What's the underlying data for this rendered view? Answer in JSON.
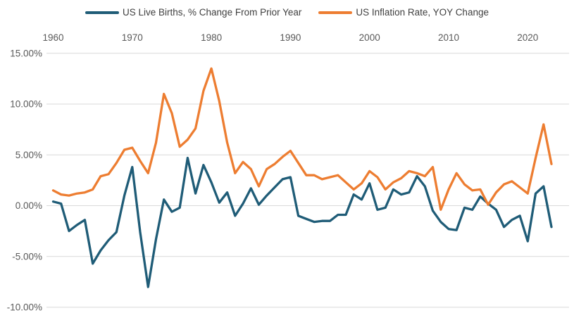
{
  "legend": [
    {
      "label": "US Live Births, % Change From Prior Year",
      "color": "#1F5C77"
    },
    {
      "label": "US Inflation Rate, YOY Change",
      "color": "#ED7D31"
    }
  ],
  "chart_data": {
    "type": "line",
    "title": "",
    "xlabel": "",
    "ylabel": "",
    "x": [
      1960,
      1961,
      1962,
      1963,
      1964,
      1965,
      1966,
      1967,
      1968,
      1969,
      1970,
      1971,
      1972,
      1973,
      1974,
      1975,
      1976,
      1977,
      1978,
      1979,
      1980,
      1981,
      1982,
      1983,
      1984,
      1985,
      1986,
      1987,
      1988,
      1989,
      1990,
      1991,
      1992,
      1993,
      1994,
      1995,
      1996,
      1997,
      1998,
      1999,
      2000,
      2001,
      2002,
      2003,
      2004,
      2005,
      2006,
      2007,
      2008,
      2009,
      2010,
      2011,
      2012,
      2013,
      2014,
      2015,
      2016,
      2017,
      2018,
      2019,
      2020,
      2021,
      2022,
      2023
    ],
    "series": [
      {
        "name": "US Live Births, % Change From Prior Year",
        "color": "#1F5C77",
        "values": [
          0.4,
          0.2,
          -2.5,
          -1.9,
          -1.4,
          -5.7,
          -4.4,
          -3.4,
          -2.6,
          1.0,
          3.8,
          -2.6,
          -8.0,
          -3.3,
          0.6,
          -0.6,
          -0.2,
          4.7,
          1.2,
          4.0,
          2.3,
          0.3,
          1.3,
          -1.0,
          0.2,
          1.7,
          0.1,
          1.0,
          1.8,
          2.6,
          2.8,
          -1.0,
          -1.3,
          -1.6,
          -1.5,
          -1.5,
          -0.9,
          -0.9,
          1.1,
          0.6,
          2.2,
          -0.4,
          -0.2,
          1.6,
          1.1,
          1.3,
          2.9,
          1.9,
          -0.5,
          -1.6,
          -2.3,
          -2.4,
          -0.2,
          -0.4,
          0.9,
          0.2,
          -0.4,
          -2.1,
          -1.4,
          -1.0,
          -3.5,
          1.2,
          1.9,
          -2.1
        ]
      },
      {
        "name": "US Inflation Rate, YOY Change",
        "color": "#ED7D31",
        "values": [
          1.5,
          1.1,
          1.0,
          1.2,
          1.3,
          1.6,
          2.9,
          3.1,
          4.2,
          5.5,
          5.7,
          4.4,
          3.2,
          6.2,
          11.0,
          9.1,
          5.8,
          6.5,
          7.6,
          11.3,
          13.5,
          10.3,
          6.2,
          3.2,
          4.3,
          3.6,
          1.9,
          3.6,
          4.1,
          4.8,
          5.4,
          4.2,
          3.0,
          3.0,
          2.6,
          2.8,
          3.0,
          2.3,
          1.6,
          2.2,
          3.4,
          2.8,
          1.6,
          2.3,
          2.7,
          3.4,
          3.2,
          2.9,
          3.8,
          -0.4,
          1.6,
          3.2,
          2.1,
          1.5,
          1.6,
          0.1,
          1.3,
          2.1,
          2.4,
          1.8,
          1.2,
          4.7,
          8.0,
          4.1
        ]
      }
    ],
    "x_tick_labels": [
      "1960",
      "1970",
      "1980",
      "1990",
      "2000",
      "2010",
      "2020"
    ],
    "x_tick_values": [
      1960,
      1970,
      1980,
      1990,
      2000,
      2010,
      2020
    ],
    "y_tick_labels": [
      "15.00%",
      "10.00%",
      "5.00%",
      "0.00%",
      "-5.00%",
      "-10.00%"
    ],
    "y_tick_values": [
      15,
      10,
      5,
      0,
      -5,
      -10
    ],
    "xlim": [
      1960,
      2023
    ],
    "ylim": [
      -10,
      15
    ],
    "grid": "horizontal-only",
    "legend_position": "top-center",
    "x_axis_position": "top",
    "colors": {
      "background": "#FFFFFF",
      "gridline": "#D9D9D9",
      "tick_label": "#595959",
      "legend_text": "#404040"
    }
  }
}
